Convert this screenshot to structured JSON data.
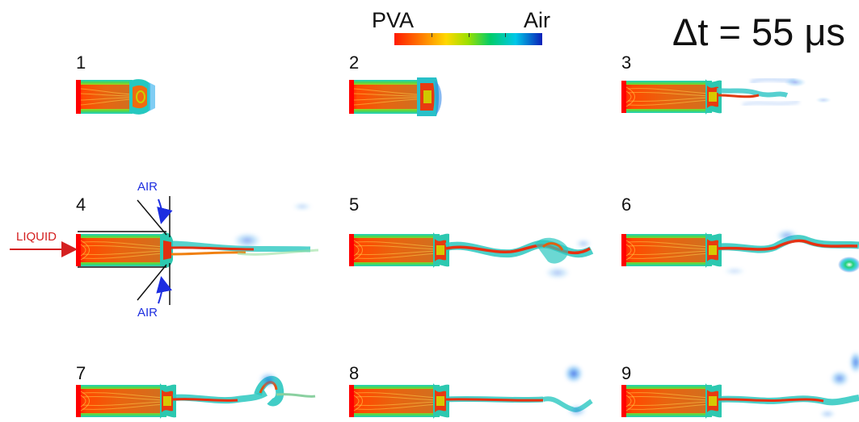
{
  "colorbar": {
    "left_label": "PVA",
    "right_label": "Air",
    "colors": [
      "#ff1a00",
      "#ffd800",
      "#00cc6a",
      "#0b1fb8"
    ]
  },
  "timestep": "Δt = 55 μs",
  "panels": [
    {
      "label": "1"
    },
    {
      "label": "2"
    },
    {
      "label": "3"
    },
    {
      "label": "4"
    },
    {
      "label": "5"
    },
    {
      "label": "6"
    },
    {
      "label": "7"
    },
    {
      "label": "8"
    },
    {
      "label": "9"
    }
  ],
  "annotations": {
    "liquid": "LIQUID",
    "air_top": "AIR",
    "air_bottom": "AIR",
    "liquid_color": "#d42020",
    "air_color": "#1d2ee0"
  }
}
